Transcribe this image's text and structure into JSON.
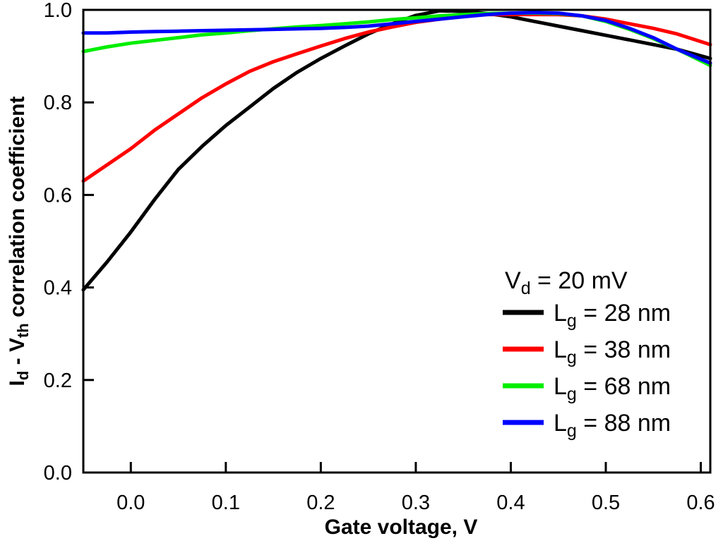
{
  "chart_data": {
    "type": "line",
    "title": "",
    "xlabel": "Gate voltage, V",
    "ylabel": {
      "part1": "I",
      "sub1": "d",
      "part2": " - V",
      "sub2": "th",
      "part3": " correlation coefficient"
    },
    "xlim": [
      -0.05,
      0.61
    ],
    "ylim": [
      0.0,
      1.0
    ],
    "xticks": [
      0.0,
      0.1,
      0.2,
      0.3,
      0.4,
      0.5,
      0.6
    ],
    "xtick_labels": [
      "0.0",
      "0.1",
      "0.2",
      "0.3",
      "0.4",
      "0.5",
      "0.6"
    ],
    "yticks": [
      0.0,
      0.2,
      0.4,
      0.6,
      0.8,
      1.0
    ],
    "ytick_labels": [
      "0.0",
      "0.2",
      "0.4",
      "0.6",
      "0.8",
      "1.0"
    ],
    "grid": false,
    "legend_position": "bottom-right",
    "legend_header": {
      "main": "V",
      "sub": "d",
      "rest": " = 20 mV"
    },
    "series": [
      {
        "name": "Lg = 28 nm",
        "label": {
          "main": "L",
          "sub": "g",
          "rest": " = 28 nm"
        },
        "color": "#000000",
        "x": [
          -0.05,
          -0.025,
          0.0,
          0.025,
          0.05,
          0.075,
          0.1,
          0.125,
          0.15,
          0.175,
          0.2,
          0.225,
          0.25,
          0.275,
          0.3,
          0.325,
          0.35,
          0.375,
          0.4,
          0.425,
          0.45,
          0.475,
          0.5,
          0.525,
          0.55,
          0.575,
          0.61
        ],
        "y": [
          0.395,
          0.455,
          0.52,
          0.59,
          0.655,
          0.705,
          0.75,
          0.79,
          0.83,
          0.865,
          0.895,
          0.922,
          0.948,
          0.97,
          0.988,
          0.998,
          0.997,
          0.992,
          0.985,
          0.975,
          0.965,
          0.955,
          0.945,
          0.935,
          0.925,
          0.915,
          0.895
        ]
      },
      {
        "name": "Lg = 38 nm",
        "label": {
          "main": "L",
          "sub": "g",
          "rest": " = 38 nm"
        },
        "color": "#ff0000",
        "x": [
          -0.05,
          -0.025,
          0.0,
          0.025,
          0.05,
          0.075,
          0.1,
          0.125,
          0.15,
          0.175,
          0.2,
          0.225,
          0.25,
          0.275,
          0.3,
          0.325,
          0.35,
          0.375,
          0.4,
          0.425,
          0.45,
          0.475,
          0.5,
          0.525,
          0.55,
          0.575,
          0.61
        ],
        "y": [
          0.63,
          0.665,
          0.7,
          0.74,
          0.775,
          0.81,
          0.84,
          0.867,
          0.888,
          0.905,
          0.922,
          0.938,
          0.952,
          0.963,
          0.973,
          0.98,
          0.986,
          0.99,
          0.99,
          0.99,
          0.99,
          0.987,
          0.98,
          0.97,
          0.96,
          0.948,
          0.925
        ]
      },
      {
        "name": "Lg = 68 nm",
        "label": {
          "main": "L",
          "sub": "g",
          "rest": " = 68 nm"
        },
        "color": "#00ee00",
        "x": [
          -0.05,
          -0.025,
          0.0,
          0.025,
          0.05,
          0.075,
          0.1,
          0.125,
          0.15,
          0.175,
          0.2,
          0.225,
          0.25,
          0.275,
          0.3,
          0.325,
          0.35,
          0.375,
          0.4,
          0.425,
          0.45,
          0.475,
          0.5,
          0.525,
          0.55,
          0.575,
          0.61
        ],
        "y": [
          0.91,
          0.92,
          0.928,
          0.934,
          0.94,
          0.946,
          0.95,
          0.955,
          0.959,
          0.963,
          0.966,
          0.97,
          0.974,
          0.979,
          0.983,
          0.987,
          0.99,
          0.992,
          0.993,
          0.993,
          0.992,
          0.987,
          0.975,
          0.958,
          0.938,
          0.915,
          0.88
        ]
      },
      {
        "name": "Lg = 88 nm",
        "label": {
          "main": "L",
          "sub": "g",
          "rest": " = 88 nm"
        },
        "color": "#0000ff",
        "x": [
          -0.05,
          -0.025,
          0.0,
          0.025,
          0.05,
          0.075,
          0.1,
          0.125,
          0.15,
          0.175,
          0.2,
          0.225,
          0.25,
          0.275,
          0.3,
          0.325,
          0.35,
          0.375,
          0.4,
          0.425,
          0.45,
          0.475,
          0.5,
          0.525,
          0.55,
          0.575,
          0.61
        ],
        "y": [
          0.95,
          0.95,
          0.952,
          0.953,
          0.954,
          0.955,
          0.956,
          0.957,
          0.958,
          0.959,
          0.96,
          0.962,
          0.965,
          0.97,
          0.975,
          0.98,
          0.985,
          0.99,
          0.993,
          0.994,
          0.993,
          0.987,
          0.977,
          0.96,
          0.94,
          0.915,
          0.885
        ]
      }
    ]
  }
}
